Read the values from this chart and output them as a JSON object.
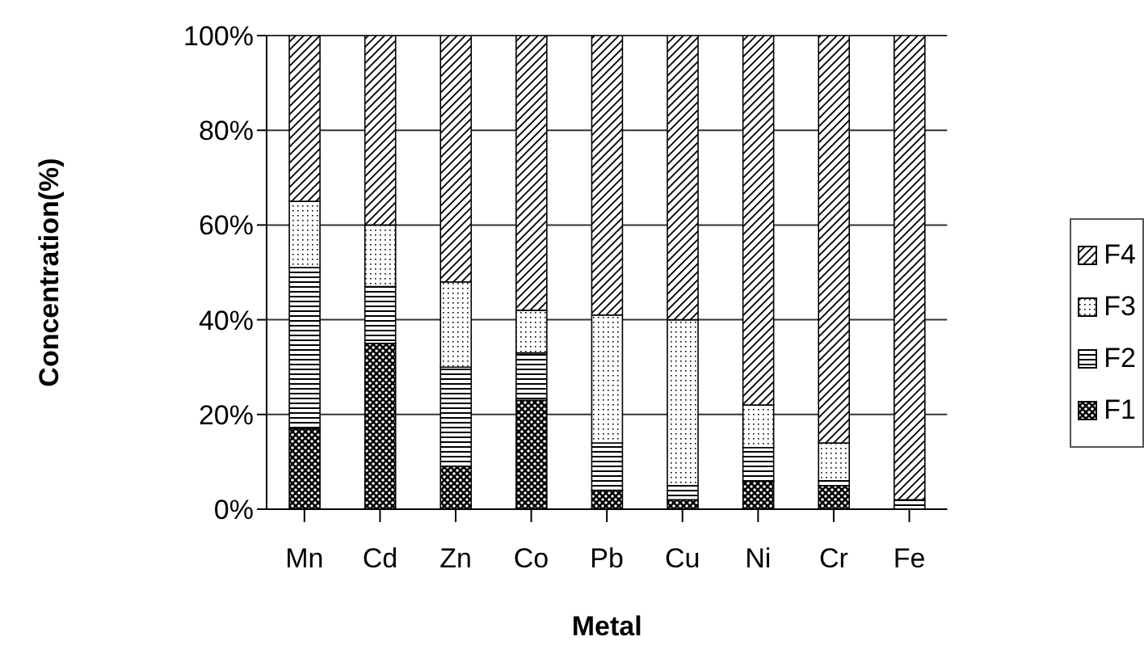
{
  "chart_data": {
    "type": "bar",
    "stacked": true,
    "xlabel": "Metal",
    "ylabel": "Concentration(%)",
    "categories": [
      "Mn",
      "Cd",
      "Zn",
      "Co",
      "Pb",
      "Cu",
      "Ni",
      "Cr",
      "Fe"
    ],
    "series": [
      {
        "name": "F1",
        "color": "#000000",
        "values": [
          17,
          35,
          9,
          23,
          4,
          2,
          6,
          5,
          0
        ]
      },
      {
        "name": "F2",
        "color": "#000000",
        "values": [
          34,
          12,
          21,
          10,
          10,
          3,
          7,
          1,
          2
        ]
      },
      {
        "name": "F3",
        "color": "#000000",
        "values": [
          14,
          13,
          18,
          9,
          27,
          35,
          9,
          8,
          0
        ]
      },
      {
        "name": "F4",
        "color": "#000000",
        "values": [
          35,
          40,
          52,
          58,
          59,
          60,
          78,
          86,
          98
        ]
      }
    ],
    "ylim": [
      0,
      100
    ],
    "yticks": [
      {
        "value": 0,
        "label": "0%"
      },
      {
        "value": 20,
        "label": "20%"
      },
      {
        "value": 40,
        "label": "40%"
      },
      {
        "value": 60,
        "label": "60%"
      },
      {
        "value": 80,
        "label": "80%"
      },
      {
        "value": 100,
        "label": "100%"
      }
    ],
    "grid": "y",
    "legend": "right"
  }
}
